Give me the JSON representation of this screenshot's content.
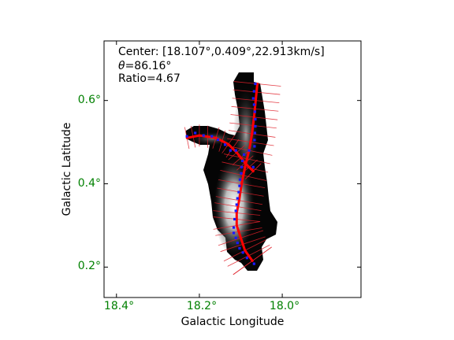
{
  "chart_data": {
    "type": "scatter",
    "xlabel": "Galactic Longitude",
    "ylabel": "Galactic Latitude",
    "xlim": [
      18.43,
      17.81
    ],
    "ylim": [
      0.127,
      0.743
    ],
    "x_ticks": [
      18.4,
      18.2,
      18.0
    ],
    "x_tick_labels": [
      "18.4°",
      "18.2°",
      "18.0°"
    ],
    "y_ticks": [
      0.2,
      0.4,
      0.6
    ],
    "y_tick_labels": [
      "0.2°",
      "0.4°",
      "0.6°"
    ],
    "tick_color": "#008000",
    "annotations": {
      "line1": "Center: [18.107°,0.409°,22.913km/s]",
      "line2": "=86.16°",
      "theta_symbol": "θ",
      "line3": "Ratio=4.67"
    },
    "spine_main": {
      "color": "#ff0000",
      "points": [
        [
          18.06,
          0.64
        ],
        [
          18.064,
          0.6
        ],
        [
          18.068,
          0.56
        ],
        [
          18.073,
          0.52
        ],
        [
          18.08,
          0.48
        ],
        [
          18.09,
          0.44
        ],
        [
          18.098,
          0.4
        ],
        [
          18.104,
          0.36
        ],
        [
          18.11,
          0.33
        ],
        [
          18.11,
          0.3
        ],
        [
          18.1,
          0.27
        ],
        [
          18.09,
          0.24
        ],
        [
          18.072,
          0.215
        ]
      ]
    },
    "spine_branch": {
      "color": "#ff0000",
      "points": [
        [
          18.23,
          0.51
        ],
        [
          18.2,
          0.516
        ],
        [
          18.16,
          0.51
        ],
        [
          18.13,
          0.495
        ],
        [
          18.11,
          0.475
        ],
        [
          18.09,
          0.45
        ],
        [
          18.07,
          0.43
        ]
      ]
    },
    "nodes": {
      "color": "#1a1aff",
      "points": [
        [
          18.065,
          0.64
        ],
        [
          18.068,
          0.622
        ],
        [
          18.07,
          0.605
        ],
        [
          18.068,
          0.59
        ],
        [
          18.066,
          0.573
        ],
        [
          18.065,
          0.555
        ],
        [
          18.065,
          0.538
        ],
        [
          18.066,
          0.522
        ],
        [
          18.067,
          0.505
        ],
        [
          18.067,
          0.49
        ],
        [
          18.08,
          0.48
        ],
        [
          18.092,
          0.47
        ],
        [
          18.096,
          0.455
        ],
        [
          18.098,
          0.44
        ],
        [
          18.07,
          0.44
        ],
        [
          18.099,
          0.425
        ],
        [
          18.102,
          0.41
        ],
        [
          18.103,
          0.395
        ],
        [
          18.105,
          0.38
        ],
        [
          18.108,
          0.365
        ],
        [
          18.11,
          0.35
        ],
        [
          18.112,
          0.335
        ],
        [
          18.115,
          0.315
        ],
        [
          18.117,
          0.295
        ],
        [
          18.117,
          0.282
        ],
        [
          18.112,
          0.27
        ],
        [
          18.108,
          0.258
        ],
        [
          18.103,
          0.245
        ],
        [
          18.095,
          0.235
        ],
        [
          18.085,
          0.222
        ],
        [
          18.068,
          0.208
        ],
        [
          18.23,
          0.514
        ],
        [
          18.21,
          0.522
        ],
        [
          18.19,
          0.516
        ],
        [
          18.17,
          0.514
        ],
        [
          18.155,
          0.506
        ],
        [
          18.138,
          0.494
        ],
        [
          18.125,
          0.48
        ],
        [
          18.112,
          0.48
        ]
      ]
    }
  }
}
